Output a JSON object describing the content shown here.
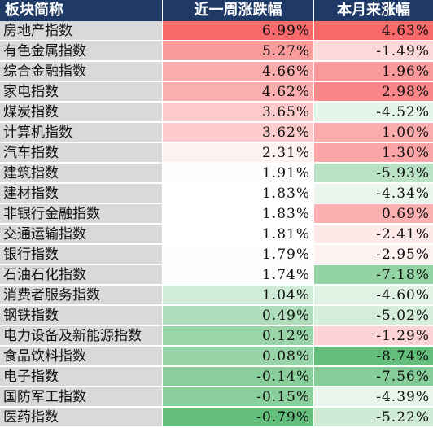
{
  "chart_data": {
    "type": "table",
    "columns": [
      "板块简称",
      "近一周涨跌幅",
      "本月来涨幅"
    ],
    "rows": [
      {
        "name": "房地产指数",
        "week": "6.99%",
        "month": "4.63%",
        "week_val": 6.99,
        "month_val": 4.63
      },
      {
        "name": "有色金属指数",
        "week": "5.27%",
        "month": "-1.49%",
        "week_val": 5.27,
        "month_val": -1.49
      },
      {
        "name": "综合金融指数",
        "week": "4.66%",
        "month": "1.96%",
        "week_val": 4.66,
        "month_val": 1.96
      },
      {
        "name": "家电指数",
        "week": "4.62%",
        "month": "2.98%",
        "week_val": 4.62,
        "month_val": 2.98
      },
      {
        "name": "煤炭指数",
        "week": "3.65%",
        "month": "-4.52%",
        "week_val": 3.65,
        "month_val": -4.52
      },
      {
        "name": "计算机指数",
        "week": "3.62%",
        "month": "1.00%",
        "week_val": 3.62,
        "month_val": 1.0
      },
      {
        "name": "汽车指数",
        "week": "2.31%",
        "month": "1.30%",
        "week_val": 2.31,
        "month_val": 1.3
      },
      {
        "name": "建筑指数",
        "week": "1.91%",
        "month": "-5.93%",
        "week_val": 1.91,
        "month_val": -5.93
      },
      {
        "name": "建材指数",
        "week": "1.83%",
        "month": "-4.34%",
        "week_val": 1.83,
        "month_val": -4.34
      },
      {
        "name": "非银行金融指数",
        "week": "1.83%",
        "month": "0.69%",
        "week_val": 1.83,
        "month_val": 0.69
      },
      {
        "name": "交通运输指数",
        "week": "1.81%",
        "month": "-2.41%",
        "week_val": 1.81,
        "month_val": -2.41
      },
      {
        "name": "银行指数",
        "week": "1.79%",
        "month": "-2.95%",
        "week_val": 1.79,
        "month_val": -2.95
      },
      {
        "name": "石油石化指数",
        "week": "1.74%",
        "month": "-7.18%",
        "week_val": 1.74,
        "month_val": -7.18
      },
      {
        "name": "消费者服务指数",
        "week": "1.04%",
        "month": "-4.60%",
        "week_val": 1.04,
        "month_val": -4.6
      },
      {
        "name": "钢铁指数",
        "week": "0.49%",
        "month": "-5.02%",
        "week_val": 0.49,
        "month_val": -5.02
      },
      {
        "name": "电力设备及新能源指数",
        "week": "0.12%",
        "month": "-1.29%",
        "week_val": 0.12,
        "month_val": -1.29
      },
      {
        "name": "食品饮料指数",
        "week": "0.08%",
        "month": "-8.74%",
        "week_val": 0.08,
        "month_val": -8.74
      },
      {
        "name": "电子指数",
        "week": "-0.14%",
        "month": "-7.56%",
        "week_val": -0.14,
        "month_val": -7.56
      },
      {
        "name": "国防军工指数",
        "week": "-0.15%",
        "month": "-4.39%",
        "week_val": -0.15,
        "month_val": -4.39
      },
      {
        "name": "医药指数",
        "week": "-0.79%",
        "month": "-5.22%",
        "week_val": -0.79,
        "month_val": -5.22
      }
    ],
    "colors": {
      "header_bg": "#1f3a66",
      "header_text": "#ffffff",
      "name_bg": "#d9d9d9",
      "positive": "#f8696b",
      "negative": "#63be7b",
      "neutral": "#ffffff"
    }
  }
}
